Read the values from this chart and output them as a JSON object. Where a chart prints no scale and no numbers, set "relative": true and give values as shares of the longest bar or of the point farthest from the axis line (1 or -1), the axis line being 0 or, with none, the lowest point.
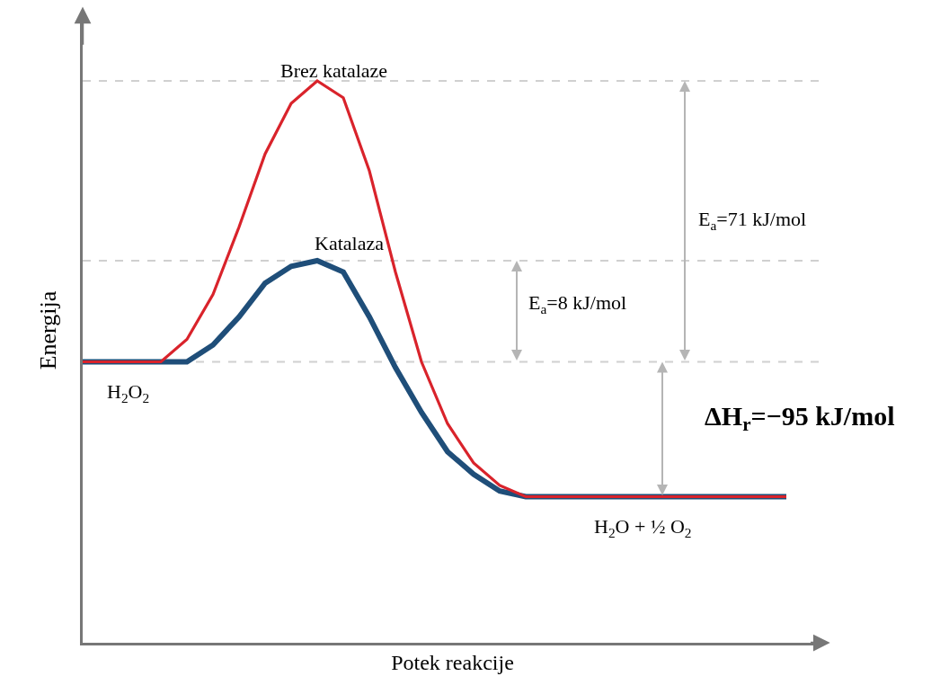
{
  "chart_data": {
    "type": "line",
    "relative": true,
    "xlabel": "Potek reakcije",
    "ylabel": "Energija",
    "categories": [
      null,
      null,
      null,
      null,
      null,
      null,
      null,
      null,
      null,
      null,
      null,
      null,
      null,
      null,
      null,
      null,
      null,
      null,
      null,
      null,
      null,
      null,
      null,
      null,
      null,
      null,
      null,
      null
    ],
    "series": [
      {
        "name": "Brez katalaze",
        "color": "#d9232b",
        "values": [
          0.5,
          0.5,
          0.5,
          0.5,
          0.54,
          0.62,
          0.74,
          0.87,
          0.96,
          1,
          0.97,
          0.84,
          0.66,
          0.5,
          0.39,
          0.32,
          0.28,
          0.26,
          0.26,
          0.26,
          0.26,
          0.26,
          0.26,
          0.26,
          0.26,
          0.26,
          0.26,
          0.26
        ]
      },
      {
        "name": "Katalaza",
        "color": "#1f4e79",
        "values": [
          0.5,
          0.5,
          0.5,
          0.5,
          0.5,
          0.53,
          0.58,
          0.64,
          0.67,
          0.68,
          0.66,
          0.58,
          0.49,
          0.41,
          0.34,
          0.3,
          0.27,
          0.26,
          0.26,
          0.26,
          0.26,
          0.26,
          0.26,
          0.26,
          0.26,
          0.26,
          0.26,
          0.26
        ]
      }
    ],
    "ref_lines": [
      {
        "axis": "y",
        "value": 1,
        "color": "#d0d0d0",
        "line_style": "dashed"
      },
      {
        "axis": "y",
        "value": 0.68,
        "color": "#d0d0d0",
        "line_style": "dashed"
      },
      {
        "axis": "y",
        "value": 0.5,
        "color": "#d0d0d0",
        "line_style": "dashed"
      }
    ],
    "annotations": [
      "E$_{a}$=71 kJ/mol",
      "E$_{a}$=8 kJ/mol",
      "ΔH$_{r}$=−95 kJ/mol",
      "H$_{2}$O$_{2}$",
      "H$_{2}$O + ½ O$_{2}$"
    ],
    "legend": false,
    "marker": "none",
    "line_style": "solid"
  }
}
